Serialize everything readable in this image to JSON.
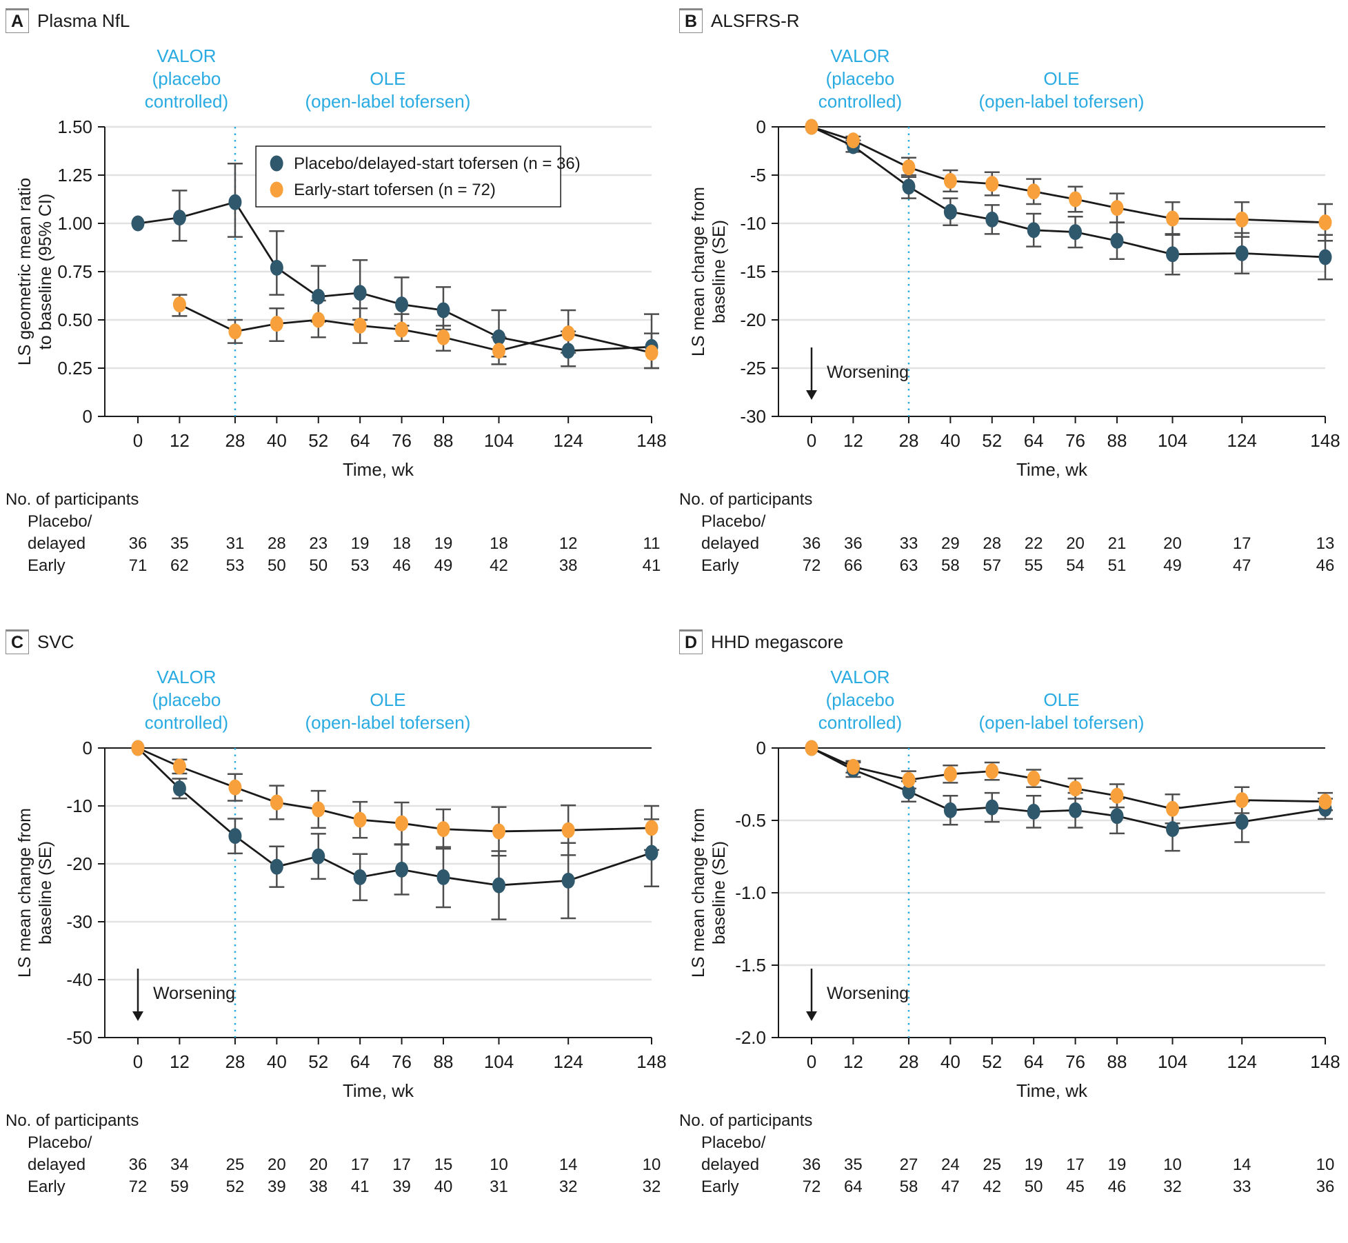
{
  "style": {
    "teal": "#30586C",
    "orange": "#F8A13C",
    "cyan": "#29ABE2",
    "grid": "#E2E2E2",
    "errbar": "#4D4D4D",
    "line": "#1A1A1A"
  },
  "legend": {
    "items": [
      {
        "label": "Placebo/delayed-start tofersen (n = 36)",
        "color": "#30586C"
      },
      {
        "label": "Early-start tofersen (n = 72)",
        "color": "#F8A13C"
      }
    ]
  },
  "x_axis": {
    "label": "Time, wk",
    "ticks": [
      0,
      12,
      28,
      40,
      52,
      64,
      76,
      88,
      104,
      124,
      148
    ],
    "max": 148
  },
  "phases": [
    {
      "lines": [
        "VALOR",
        "(placebo",
        "controlled)"
      ],
      "center_t": 14
    },
    {
      "lines": [
        "OLE",
        "(open-label tofersen)"
      ],
      "center_t": 72
    }
  ],
  "divider_t": 28,
  "worsening_label": "Worsening",
  "participants_label": "No. of participants",
  "row_labels": {
    "placebo_line1": "Placebo/",
    "placebo_line2": "delayed",
    "early": "Early"
  },
  "chart_data": [
    {
      "type": "line",
      "panel": "A",
      "title": "Plasma NfL",
      "ylabel_lines": [
        "LS geometric mean ratio",
        "to baseline (95% CI)"
      ],
      "ymin": 0,
      "ymax": 1.5,
      "yticks": [
        {
          "v": 1.5,
          "label": "1.50"
        },
        {
          "v": 1.25,
          "label": "1.25"
        },
        {
          "v": 1.0,
          "label": "1.00"
        },
        {
          "v": 0.75,
          "label": "0.75"
        },
        {
          "v": 0.5,
          "label": "0.50"
        },
        {
          "v": 0.25,
          "label": "0.25"
        },
        {
          "v": 0,
          "label": "0"
        }
      ],
      "legend": true,
      "worsening": false,
      "x": [
        0,
        12,
        28,
        40,
        52,
        64,
        76,
        88,
        104,
        124,
        148
      ],
      "series": [
        {
          "name": "Placebo/delayed-start tofersen",
          "color": "teal",
          "values": [
            1.0,
            1.03,
            1.11,
            0.77,
            0.62,
            0.64,
            0.58,
            0.55,
            0.41,
            0.34,
            0.36
          ],
          "lo": [
            null,
            0.91,
            0.93,
            0.63,
            0.49,
            0.5,
            0.47,
            0.45,
            0.31,
            0.26,
            0.25
          ],
          "hi": [
            null,
            1.17,
            1.31,
            0.96,
            0.78,
            0.81,
            0.72,
            0.67,
            0.55,
            0.44,
            0.53
          ]
        },
        {
          "name": "Early-start tofersen",
          "color": "orange",
          "values": [
            null,
            0.58,
            0.44,
            0.48,
            0.5,
            0.47,
            0.45,
            0.41,
            0.34,
            0.43,
            0.33
          ],
          "lo": [
            null,
            0.52,
            0.38,
            0.39,
            0.41,
            0.38,
            0.39,
            0.34,
            0.27,
            0.33,
            0.25
          ],
          "hi": [
            null,
            0.63,
            0.5,
            0.56,
            0.6,
            0.56,
            0.53,
            0.47,
            0.41,
            0.55,
            0.43
          ]
        }
      ],
      "participants": {
        "placebo_delayed": [
          36,
          35,
          31,
          28,
          23,
          19,
          18,
          19,
          18,
          12,
          11
        ],
        "early": [
          71,
          62,
          53,
          50,
          50,
          53,
          46,
          49,
          42,
          38,
          41
        ]
      }
    },
    {
      "type": "line",
      "panel": "B",
      "title": "ALSFRS-R",
      "ylabel_lines": [
        "LS mean change from",
        "baseline (SE)"
      ],
      "ymin": -30,
      "ymax": 0,
      "yticks": [
        {
          "v": 0,
          "label": "0"
        },
        {
          "v": -5,
          "label": "-5"
        },
        {
          "v": -10,
          "label": "-10"
        },
        {
          "v": -15,
          "label": "-15"
        },
        {
          "v": -20,
          "label": "-20"
        },
        {
          "v": -25,
          "label": "-25"
        },
        {
          "v": -30,
          "label": "-30"
        }
      ],
      "legend": false,
      "worsening": true,
      "x": [
        0,
        12,
        28,
        40,
        52,
        64,
        76,
        88,
        104,
        124,
        148
      ],
      "series": [
        {
          "name": "Placebo/delayed-start tofersen",
          "color": "teal",
          "values": [
            0,
            -2.0,
            -6.2,
            -8.8,
            -9.6,
            -10.7,
            -10.9,
            -11.8,
            -13.2,
            -13.1,
            -13.5
          ],
          "lo": [
            null,
            -2.6,
            -7.4,
            -10.2,
            -11.1,
            -12.4,
            -12.5,
            -13.7,
            -15.3,
            -15.2,
            -15.8
          ],
          "hi": [
            null,
            -1.4,
            -5.0,
            -7.4,
            -8.1,
            -9.0,
            -9.3,
            -9.9,
            -11.1,
            -11.0,
            -11.2
          ]
        },
        {
          "name": "Early-start tofersen",
          "color": "orange",
          "values": [
            0,
            -1.4,
            -4.2,
            -5.6,
            -5.9,
            -6.7,
            -7.5,
            -8.4,
            -9.5,
            -9.6,
            -9.9
          ],
          "lo": [
            null,
            -1.8,
            -5.2,
            -6.7,
            -7.1,
            -8.0,
            -8.8,
            -9.9,
            -11.2,
            -11.4,
            -11.8
          ],
          "hi": [
            null,
            -1.0,
            -3.2,
            -4.5,
            -4.7,
            -5.4,
            -6.2,
            -6.9,
            -7.8,
            -7.8,
            -8.0
          ]
        }
      ],
      "participants": {
        "placebo_delayed": [
          36,
          36,
          33,
          29,
          28,
          22,
          20,
          21,
          20,
          17,
          13
        ],
        "early": [
          72,
          66,
          63,
          58,
          57,
          55,
          54,
          51,
          49,
          47,
          46
        ]
      }
    },
    {
      "type": "line",
      "panel": "C",
      "title": "SVC",
      "ylabel_lines": [
        "LS mean change from",
        "baseline (SE)"
      ],
      "ymin": -50,
      "ymax": 0,
      "yticks": [
        {
          "v": 0,
          "label": "0"
        },
        {
          "v": -10,
          "label": "-10"
        },
        {
          "v": -20,
          "label": "-20"
        },
        {
          "v": -30,
          "label": "-30"
        },
        {
          "v": -40,
          "label": "-40"
        },
        {
          "v": -50,
          "label": "-50"
        }
      ],
      "legend": false,
      "worsening": true,
      "x": [
        0,
        12,
        28,
        40,
        52,
        64,
        76,
        88,
        104,
        124,
        148
      ],
      "series": [
        {
          "name": "Placebo/delayed-start tofersen",
          "color": "teal",
          "values": [
            0,
            -7.0,
            -15.2,
            -20.5,
            -18.7,
            -22.3,
            -21.0,
            -22.3,
            -23.7,
            -22.9,
            -18.1
          ],
          "lo": [
            null,
            -8.7,
            -18.2,
            -24.0,
            -22.6,
            -26.3,
            -25.3,
            -27.5,
            -29.6,
            -29.4,
            -23.9
          ],
          "hi": [
            null,
            -5.3,
            -12.2,
            -17.0,
            -14.8,
            -18.3,
            -16.7,
            -17.1,
            -17.8,
            -16.4,
            -12.3
          ]
        },
        {
          "name": "Early-start tofersen",
          "color": "orange",
          "values": [
            0,
            -3.2,
            -6.8,
            -9.4,
            -10.6,
            -12.4,
            -13.0,
            -14.0,
            -14.4,
            -14.2,
            -13.8
          ],
          "lo": [
            null,
            -4.4,
            -9.1,
            -12.3,
            -13.8,
            -15.5,
            -16.6,
            -17.4,
            -18.6,
            -18.5,
            -17.6
          ],
          "hi": [
            null,
            -2.0,
            -4.5,
            -6.5,
            -7.4,
            -9.3,
            -9.4,
            -10.6,
            -10.2,
            -9.9,
            -10.0
          ]
        }
      ],
      "participants": {
        "placebo_delayed": [
          36,
          34,
          25,
          20,
          20,
          17,
          17,
          15,
          10,
          14,
          10
        ],
        "early": [
          72,
          59,
          52,
          39,
          38,
          41,
          39,
          40,
          31,
          32,
          32
        ]
      }
    },
    {
      "type": "line",
      "panel": "D",
      "title": "HHD megascore",
      "ylabel_lines": [
        "LS mean change from",
        "baseline (SE)"
      ],
      "ymin": -2.0,
      "ymax": 0,
      "yticks": [
        {
          "v": 0,
          "label": "0"
        },
        {
          "v": -0.5,
          "label": "-0.5"
        },
        {
          "v": -1.0,
          "label": "-1.0"
        },
        {
          "v": -1.5,
          "label": "-1.5"
        },
        {
          "v": -2.0,
          "label": "-2.0"
        }
      ],
      "legend": false,
      "worsening": true,
      "x": [
        0,
        12,
        28,
        40,
        52,
        64,
        76,
        88,
        104,
        124,
        148
      ],
      "series": [
        {
          "name": "Placebo/delayed-start tofersen",
          "color": "teal",
          "values": [
            0,
            -0.15,
            -0.3,
            -0.43,
            -0.41,
            -0.44,
            -0.43,
            -0.47,
            -0.56,
            -0.51,
            -0.42
          ],
          "lo": [
            null,
            -0.2,
            -0.37,
            -0.53,
            -0.51,
            -0.55,
            -0.55,
            -0.59,
            -0.71,
            -0.65,
            -0.49
          ],
          "hi": [
            null,
            -0.1,
            -0.23,
            -0.33,
            -0.31,
            -0.33,
            -0.31,
            -0.35,
            -0.41,
            -0.37,
            -0.35
          ]
        },
        {
          "name": "Early-start tofersen",
          "color": "orange",
          "values": [
            0,
            -0.13,
            -0.22,
            -0.18,
            -0.16,
            -0.21,
            -0.28,
            -0.33,
            -0.42,
            -0.36,
            -0.37
          ],
          "lo": [
            null,
            -0.17,
            -0.28,
            -0.24,
            -0.22,
            -0.27,
            -0.35,
            -0.41,
            -0.52,
            -0.45,
            -0.43
          ],
          "hi": [
            null,
            -0.09,
            -0.16,
            -0.12,
            -0.1,
            -0.15,
            -0.21,
            -0.25,
            -0.32,
            -0.27,
            -0.31
          ]
        }
      ],
      "participants": {
        "placebo_delayed": [
          36,
          35,
          27,
          24,
          25,
          19,
          17,
          19,
          10,
          14,
          10
        ],
        "early": [
          72,
          64,
          58,
          47,
          42,
          50,
          45,
          46,
          32,
          33,
          36
        ]
      }
    }
  ]
}
